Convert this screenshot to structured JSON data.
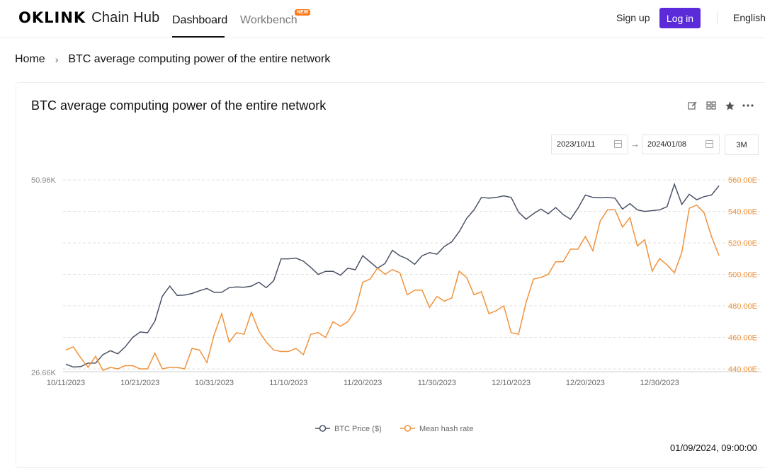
{
  "header": {
    "logo_mark": "OKLINK",
    "logo_sub": "Chain Hub",
    "tabs": [
      "Dashboard",
      "Workbench"
    ],
    "new_badge": "NEW",
    "signup": "Sign up",
    "login": "Log in",
    "language": "English",
    "colors": {
      "login_bg": "#5b2bd9",
      "badge_bg": "#ff7a1a"
    }
  },
  "breadcrumb": {
    "home": "Home",
    "current": "BTC average computing power of the entire network"
  },
  "card": {
    "title": "BTC average computing power of the entire network",
    "icons": [
      "edit-icon",
      "layout-icon",
      "star-icon",
      "more-icon"
    ],
    "date_from": "2023/10/11",
    "date_to": "2024/01/08",
    "range_button": "3M",
    "timestamp": "01/09/2024, 09:00:00"
  },
  "chart_data": {
    "type": "line",
    "title": "",
    "x_tick_labels": [
      "10/11/2023",
      "10/21/2023",
      "10/31/2023",
      "11/10/2023",
      "11/20/2023",
      "11/30/2023",
      "12/10/2023",
      "12/20/2023",
      "12/30/2023"
    ],
    "left_axis_labels": [
      "50.96K",
      "26.66K"
    ],
    "right_axis_labels": [
      "560.00E",
      "540.00E",
      "520.00E",
      "500.00E",
      "480.00E",
      "460.00E",
      "440.00E"
    ],
    "right_ylim": [
      440,
      560
    ],
    "grid": true,
    "legend_position": "bottom-center",
    "series": [
      {
        "name": "BTC Price ($)",
        "axis": "left",
        "color": "#4a5366",
        "values": [
          27.25,
          26.9,
          26.95,
          27.4,
          27.4,
          28.5,
          29.0,
          28.6,
          29.5,
          30.7,
          31.4,
          31.3,
          32.8,
          36.0,
          37.3,
          36.1,
          36.15,
          36.35,
          36.7,
          37.0,
          36.5,
          36.5,
          37.1,
          37.2,
          37.15,
          37.3,
          37.8,
          37.1,
          38.0,
          40.8,
          40.8,
          40.9,
          40.5,
          39.7,
          38.8,
          39.2,
          39.2,
          38.7,
          39.6,
          39.4,
          41.2,
          40.4,
          39.6,
          40.2,
          41.9,
          41.2,
          40.8,
          40.1,
          41.2,
          41.6,
          41.4,
          42.4,
          43.0,
          44.3,
          46.0,
          47.1,
          48.7,
          48.6,
          48.7,
          48.9,
          48.7,
          46.8,
          45.9,
          46.6,
          47.2,
          46.6,
          47.4,
          46.5,
          45.9,
          47.3,
          49.0,
          48.7,
          48.65,
          48.7,
          48.6,
          47.2,
          47.9,
          47.1,
          46.9,
          47.0,
          47.1,
          47.5,
          50.4,
          47.8,
          49.1,
          48.4,
          48.8,
          49.0,
          50.2
        ]
      },
      {
        "name": "Mean hash rate",
        "axis": "right",
        "color": "#f0923a",
        "values": [
          452,
          454,
          447,
          441,
          448,
          439,
          441,
          440,
          442,
          442,
          440,
          440,
          450,
          440,
          441,
          441,
          440,
          453,
          452,
          444,
          462,
          475,
          457,
          463,
          462,
          476,
          464,
          457,
          452,
          451,
          451,
          453,
          449,
          462,
          463,
          460,
          470,
          467,
          470,
          477,
          495,
          497,
          504,
          500,
          503,
          501,
          487,
          490,
          490,
          479,
          486,
          483,
          485,
          502,
          498,
          487,
          489,
          475,
          477,
          480,
          463,
          462,
          482,
          497,
          498,
          500,
          508,
          508,
          516,
          516,
          524,
          515,
          534,
          541,
          541,
          530,
          536,
          518,
          522,
          502,
          510,
          506,
          501,
          514,
          542,
          544,
          539,
          524,
          512
        ]
      }
    ]
  }
}
